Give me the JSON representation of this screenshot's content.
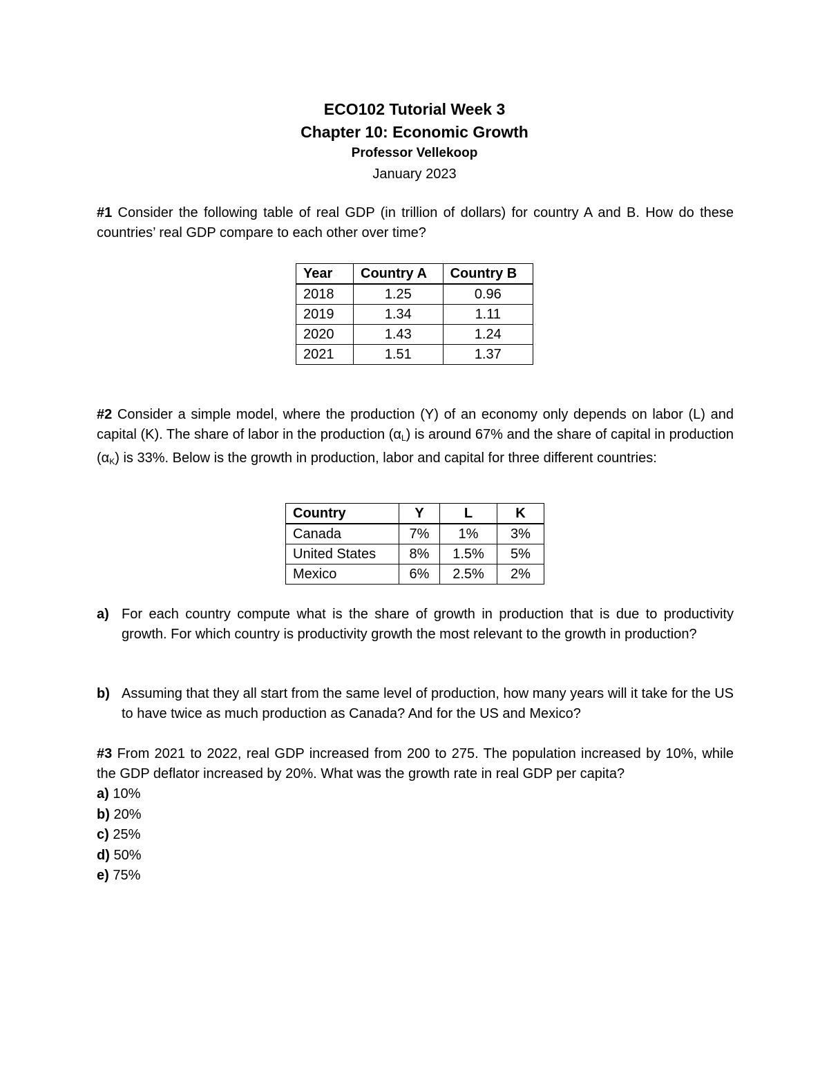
{
  "header": {
    "title": "ECO102 Tutorial Week 3",
    "chapter": "Chapter 10: Economic Growth",
    "professor": "Professor Vellekoop",
    "date": "January 2023"
  },
  "q1": {
    "label": "#1",
    "text": "Consider the following table of real GDP (in trillion of dollars) for country A and B. How do these countries’ real GDP compare to each other over time?",
    "table": {
      "headers": [
        "Year",
        "Country A",
        "Country B"
      ],
      "rows": [
        [
          "2018",
          "1.25",
          "0.96"
        ],
        [
          "2019",
          "1.34",
          "1.11"
        ],
        [
          "2020",
          "1.43",
          "1.24"
        ],
        [
          "2021",
          "1.51",
          "1.37"
        ]
      ]
    }
  },
  "q2": {
    "label": "#2",
    "text_1": "Consider a simple model, where the production (Y) of an economy only depends on labor (L) and capital (K). The share of labor in the production (",
    "alpha": "α",
    "sub_l": "L",
    "text_2": ") is around 67% and the share of capital in production (",
    "sub_k": "K",
    "text_3": ") is 33%. Below is the growth in production, labor and capital for three different countries:",
    "table": {
      "headers": [
        "Country",
        "Y",
        "L",
        "K"
      ],
      "rows": [
        [
          "Canada",
          "7%",
          "1%",
          "3%"
        ],
        [
          "United States",
          "8%",
          "1.5%",
          "5%"
        ],
        [
          "Mexico",
          "6%",
          "2.5%",
          "2%"
        ]
      ]
    },
    "parts": [
      {
        "label": "a)",
        "text": "For each country compute what is the share of growth in production that is due to productivity growth. For which country is productivity growth the most relevant to the growth in production?"
      },
      {
        "label": "b)",
        "text": "Assuming that they all start from the same level of production, how many years will it take for the US to have twice as much production as Canada? And for the US and Mexico?"
      }
    ]
  },
  "q3": {
    "label": "#3",
    "text": "From 2021 to 2022, real GDP increased from 200 to 275. The population increased by 10%, while the GDP deflator increased by 20%. What was the growth rate in real GDP per capita?",
    "options": [
      {
        "label": "a)",
        "text": "10%"
      },
      {
        "label": "b)",
        "text": "20%"
      },
      {
        "label": "c)",
        "text": "25%"
      },
      {
        "label": "d)",
        "text": "50%"
      },
      {
        "label": "e)",
        "text": "75%"
      }
    ]
  }
}
